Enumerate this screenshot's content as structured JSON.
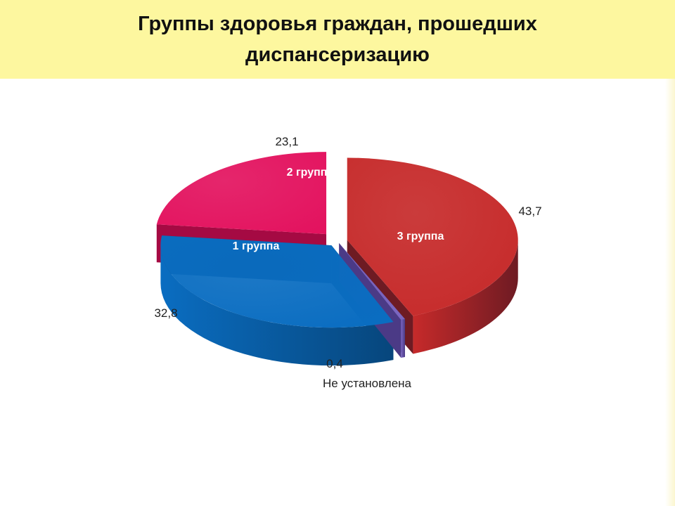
{
  "title": "Группы здоровья  граждан, прошедших\nдиспансеризацию",
  "chart_data": {
    "type": "pie",
    "style": "3d-exploded",
    "title": "Группы здоровья  граждан, прошедших диспансеризацию",
    "categories": [
      "3 группа",
      "Не установлена",
      "1 группа",
      "2 группа"
    ],
    "values": [
      43.7,
      0.4,
      32.8,
      23.1
    ],
    "value_labels": [
      "43,7",
      "0,4",
      "32,8",
      "23,1"
    ],
    "colors": [
      "#c62a2a",
      "#7b66c0",
      "#0a6dc1",
      "#e3135f"
    ],
    "side_colors": [
      "#6e1b23",
      "#4b3a86",
      "#07467c",
      "#a50a43"
    ]
  }
}
